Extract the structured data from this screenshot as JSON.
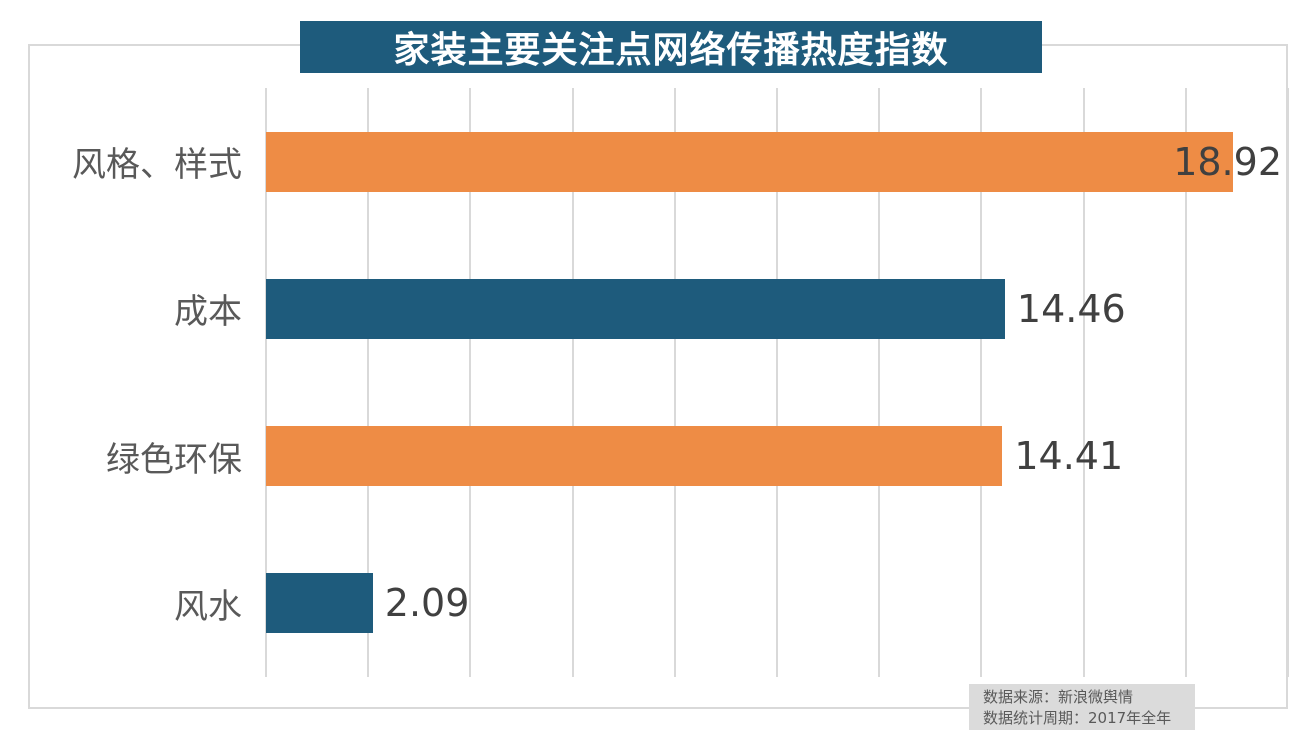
{
  "chart_data": {
    "type": "bar",
    "orientation": "horizontal",
    "title": "家装主要关注点网络传播热度指数",
    "categories": [
      "风格、样式",
      "成本",
      "绿色环保",
      "风水"
    ],
    "values": [
      18.92,
      14.46,
      14.41,
      2.09
    ],
    "value_labels": [
      "18.92",
      "14.46",
      "14.41",
      "2.09"
    ],
    "xlim": [
      0,
      20
    ],
    "grid_step": 2,
    "grid": true,
    "legend": false,
    "axis_tick_labels_visible": false,
    "bar_colors": [
      "#EE8C45",
      "#1E5B7C",
      "#EE8C45",
      "#1E5B7C"
    ]
  },
  "source_note": {
    "line1": "数据来源：新浪微舆情",
    "line2": "数据统计周期：2017年全年"
  },
  "colors": {
    "orange": "#EE8C45",
    "teal": "#1E5B7C",
    "title_bg": "#1E5B7C",
    "title_text": "#FFFFFF",
    "grid": "#D9D9D9",
    "panel_border": "#D9D9D9",
    "category_text": "#595959",
    "value_text": "#404040",
    "note_bg": "#DBDBDB",
    "note_text": "#595959"
  }
}
